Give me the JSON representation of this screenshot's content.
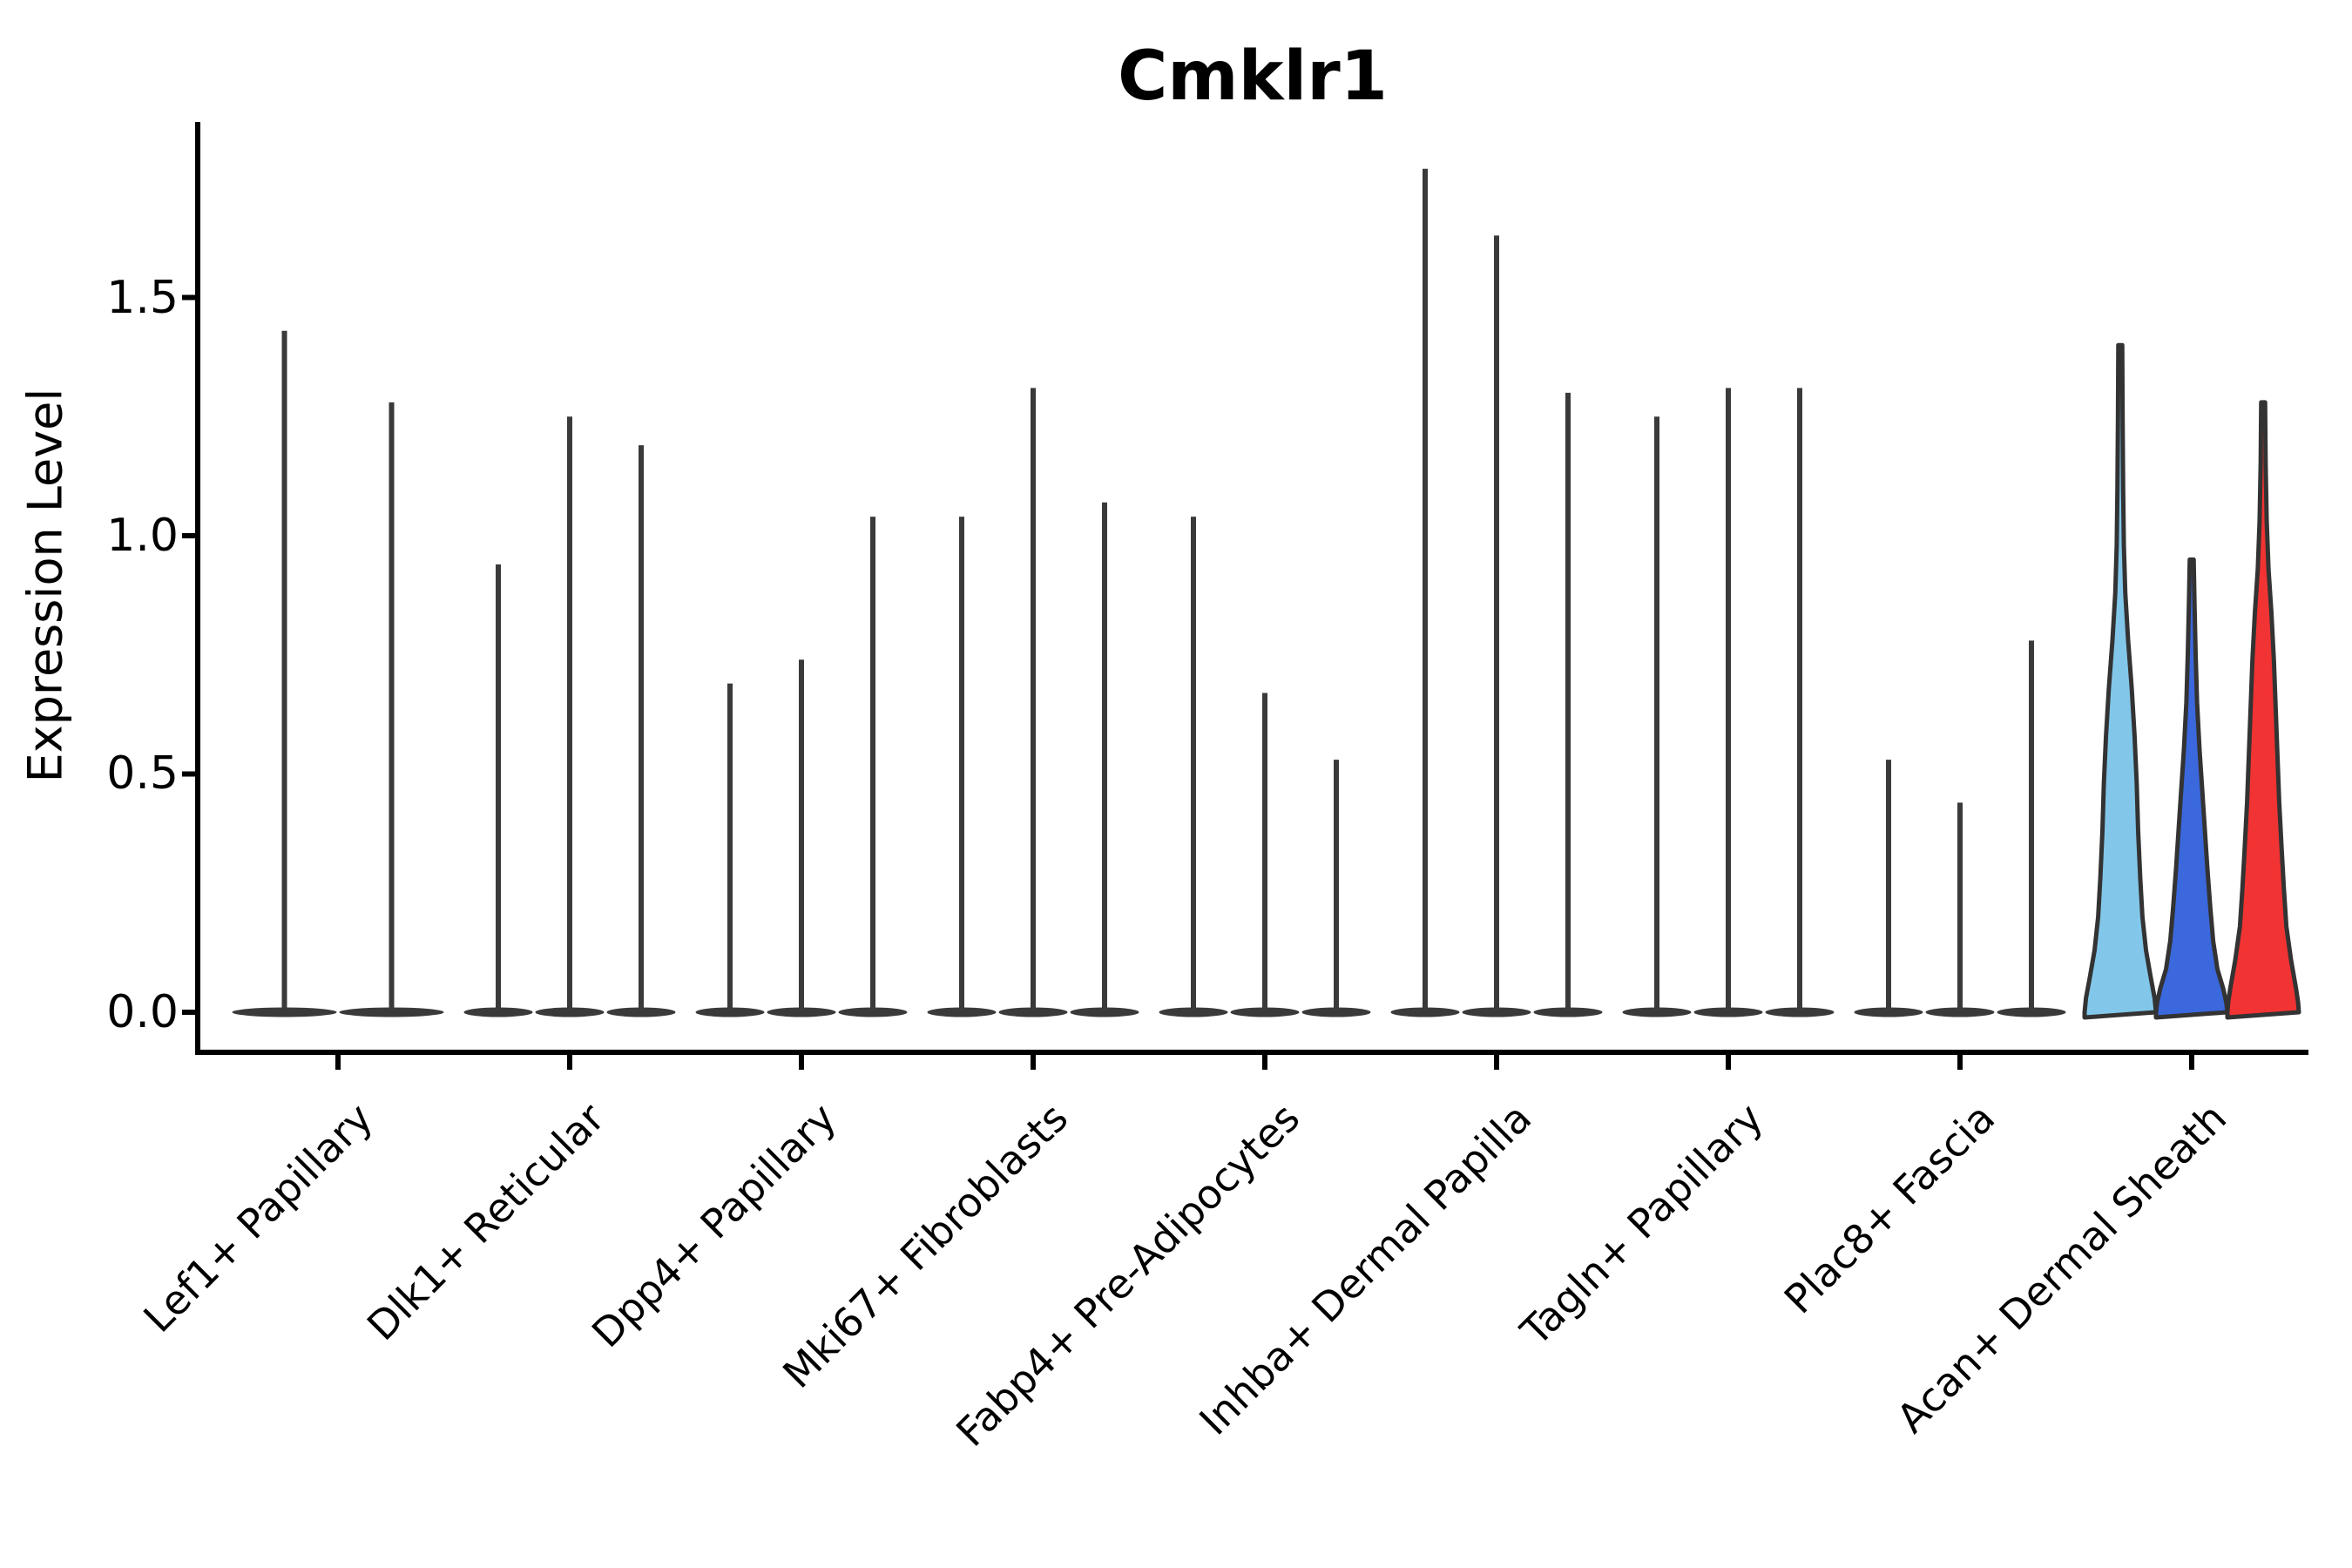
{
  "chart_data": {
    "type": "violin",
    "title": "Cmklr1",
    "ylabel": "Expression Level",
    "xlabel": "",
    "ylim": [
      -0.08,
      1.87
    ],
    "grid": false,
    "legend": "none",
    "ytick_labels": [
      "1.5",
      "1.0",
      "0.5",
      "0.0"
    ],
    "ytick_values": [
      1.5,
      1.0,
      0.5,
      0.0
    ],
    "categories": [
      "Lef1+ Papillary",
      "Dlk1+ Reticular",
      "Dpp4+ Papillary",
      "Mki67+ Fibroblasts",
      "Fabp4+ Pre-Adipocytes",
      "Inhba+ Dermal Papilla",
      "Tagln+ Papillary",
      "Plac8+ Fascia",
      "Acan+ Dermal Sheath"
    ],
    "groups": [
      {
        "category": "Lef1+ Papillary",
        "violins": [
          {
            "max": 1.43
          },
          {
            "max": 1.28
          }
        ]
      },
      {
        "category": "Dlk1+ Reticular",
        "violins": [
          {
            "max": 0.94
          },
          {
            "max": 1.25
          },
          {
            "max": 1.19
          }
        ]
      },
      {
        "category": "Dpp4+ Papillary",
        "violins": [
          {
            "max": 0.69
          },
          {
            "max": 0.74
          },
          {
            "max": 1.04
          }
        ]
      },
      {
        "category": "Mki67+ Fibroblasts",
        "violins": [
          {
            "max": 1.04
          },
          {
            "max": 1.31
          },
          {
            "max": 1.07
          }
        ]
      },
      {
        "category": "Fabp4+ Pre-Adipocytes",
        "violins": [
          {
            "max": 1.04
          },
          {
            "max": 0.67
          },
          {
            "max": 0.53
          }
        ]
      },
      {
        "category": "Inhba+ Dermal Papilla",
        "violins": [
          {
            "max": 1.77
          },
          {
            "max": 1.63
          },
          {
            "max": 1.3
          }
        ]
      },
      {
        "category": "Tagln+ Papillary",
        "violins": [
          {
            "max": 1.25
          },
          {
            "max": 1.31
          },
          {
            "max": 1.31
          }
        ]
      },
      {
        "category": "Plac8+ Fascia",
        "violins": [
          {
            "max": 0.53
          },
          {
            "max": 0.44
          },
          {
            "max": 0.78
          }
        ]
      },
      {
        "category": "Acan+ Dermal Sheath",
        "violins": [
          {
            "max": 1.4,
            "fill": "#82C7EA",
            "profile": [
              [
                1.4,
                0.055
              ],
              [
                1.25,
                0.065
              ],
              [
                1.1,
                0.08
              ],
              [
                0.98,
                0.1
              ],
              [
                0.88,
                0.14
              ],
              [
                0.78,
                0.22
              ],
              [
                0.68,
                0.32
              ],
              [
                0.58,
                0.4
              ],
              [
                0.48,
                0.46
              ],
              [
                0.38,
                0.5
              ],
              [
                0.28,
                0.56
              ],
              [
                0.2,
                0.62
              ],
              [
                0.13,
                0.72
              ],
              [
                0.07,
                0.86
              ],
              [
                0.03,
                0.96
              ],
              [
                0.0,
                1.0
              ]
            ]
          },
          {
            "max": 0.95,
            "fill": "#3B68DC",
            "profile": [
              [
                0.95,
                0.055
              ],
              [
                0.85,
                0.08
              ],
              [
                0.75,
                0.11
              ],
              [
                0.65,
                0.15
              ],
              [
                0.55,
                0.22
              ],
              [
                0.46,
                0.3
              ],
              [
                0.38,
                0.37
              ],
              [
                0.3,
                0.44
              ],
              [
                0.22,
                0.52
              ],
              [
                0.15,
                0.6
              ],
              [
                0.09,
                0.72
              ],
              [
                0.05,
                0.88
              ],
              [
                0.02,
                0.97
              ],
              [
                0.0,
                1.0
              ]
            ]
          },
          {
            "max": 1.28,
            "fill": "#F23333",
            "profile": [
              [
                1.28,
                0.055
              ],
              [
                1.15,
                0.07
              ],
              [
                1.03,
                0.1
              ],
              [
                0.93,
                0.15
              ],
              [
                0.84,
                0.23
              ],
              [
                0.74,
                0.3
              ],
              [
                0.64,
                0.35
              ],
              [
                0.54,
                0.4
              ],
              [
                0.44,
                0.45
              ],
              [
                0.34,
                0.52
              ],
              [
                0.26,
                0.58
              ],
              [
                0.18,
                0.65
              ],
              [
                0.11,
                0.78
              ],
              [
                0.05,
                0.92
              ],
              [
                0.02,
                0.98
              ],
              [
                0.0,
                1.0
              ]
            ]
          }
        ]
      }
    ],
    "colors": {
      "thin_violin": "#3A3A3A",
      "outline": "#333333",
      "axis": "#000000",
      "light_blue": "#82C7EA",
      "blue": "#3B68DC",
      "red": "#F23333"
    }
  }
}
